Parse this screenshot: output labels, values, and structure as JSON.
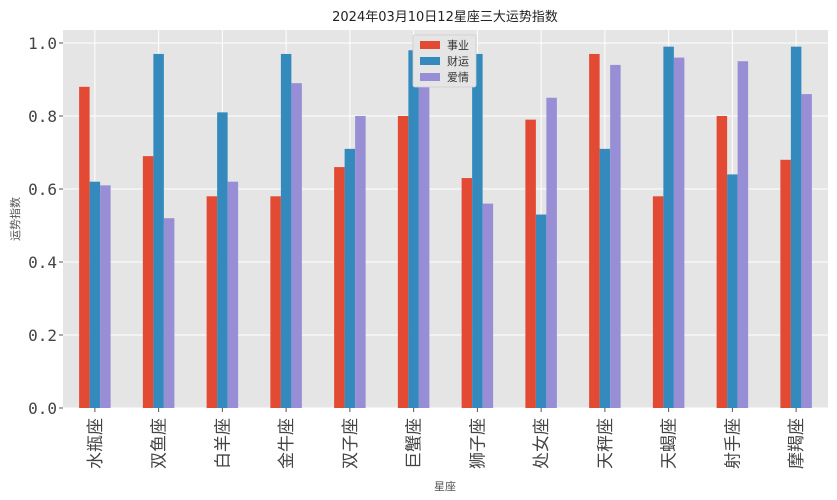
{
  "chart_data": {
    "type": "bar",
    "title": "2024年03月10日12星座三大运势指数",
    "xlabel": "星座",
    "ylabel": "运势指数",
    "ylim": [
      0,
      1.0
    ],
    "yticks": [
      "0.0",
      "0.2",
      "0.4",
      "0.6",
      "0.8",
      "1.0"
    ],
    "grid": true,
    "legend_position": "top-center",
    "categories": [
      "水瓶座",
      "双鱼座",
      "白羊座",
      "金牛座",
      "双子座",
      "巨蟹座",
      "狮子座",
      "处女座",
      "天秤座",
      "天蝎座",
      "射手座",
      "摩羯座"
    ],
    "series": [
      {
        "name": "事业",
        "color": "#E24A33",
        "values": [
          0.88,
          0.69,
          0.58,
          0.58,
          0.66,
          0.8,
          0.63,
          0.79,
          0.97,
          0.58,
          0.8,
          0.68
        ]
      },
      {
        "name": "财运",
        "color": "#348ABD",
        "values": [
          0.62,
          0.97,
          0.81,
          0.97,
          0.71,
          0.98,
          0.97,
          0.53,
          0.71,
          0.99,
          0.64,
          0.99
        ]
      },
      {
        "name": "爱情",
        "color": "#988ED5",
        "values": [
          0.61,
          0.52,
          0.62,
          0.89,
          0.8,
          0.95,
          0.56,
          0.85,
          0.94,
          0.96,
          0.95,
          0.86
        ]
      }
    ]
  }
}
